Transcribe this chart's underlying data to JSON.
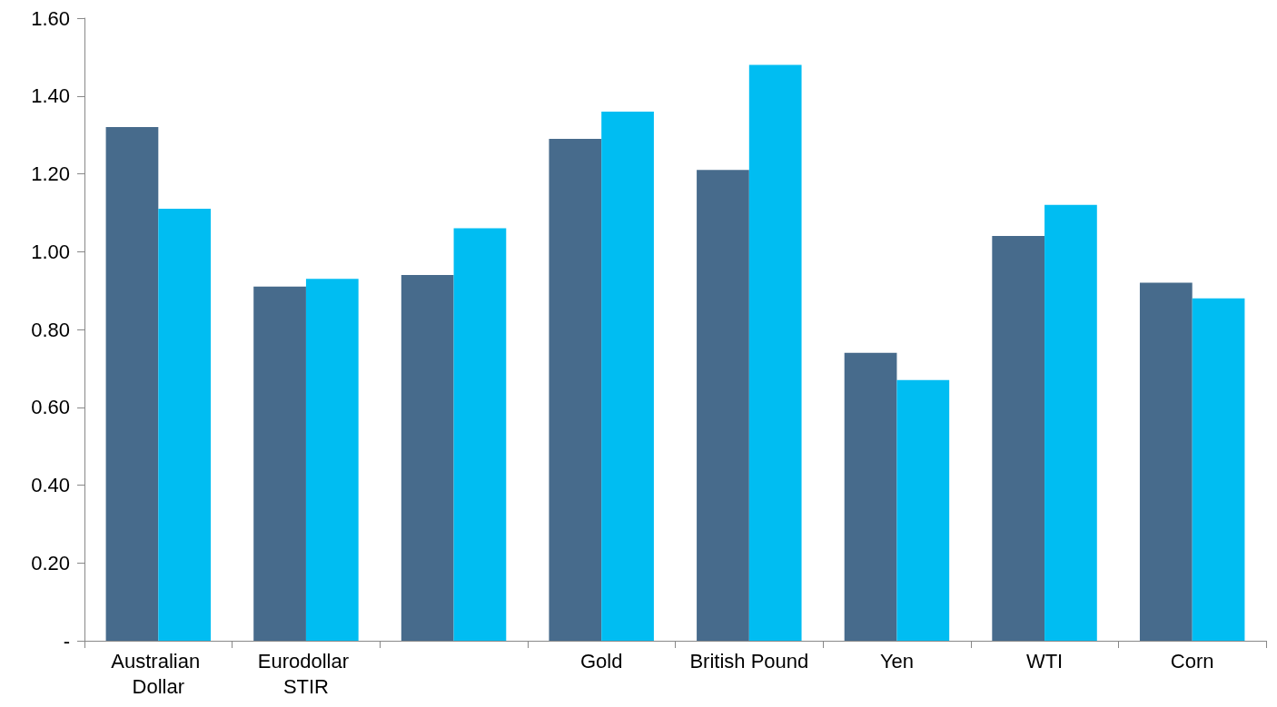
{
  "chart_data": {
    "type": "bar",
    "categories": [
      "Australian Dollar",
      "Eurodollar STIR",
      null,
      "Gold",
      "British Pound",
      "Yen",
      "WTI",
      "Corn"
    ],
    "series": [
      {
        "color": "#476b8c",
        "values": [
          1.32,
          0.91,
          0.94,
          1.29,
          1.21,
          0.74,
          1.04,
          0.92
        ]
      },
      {
        "color": "#00bdf2",
        "values": [
          1.11,
          0.93,
          1.06,
          1.36,
          1.48,
          0.67,
          1.12,
          0.88
        ]
      }
    ],
    "ylim": [
      0,
      1.6
    ],
    "yticks": [
      {
        "value": 0,
        "label": "-"
      },
      {
        "value": 0.2,
        "label": "0.20"
      },
      {
        "value": 0.4,
        "label": "0.40"
      },
      {
        "value": 0.6,
        "label": "0.60"
      },
      {
        "value": 0.8,
        "label": "0.80"
      },
      {
        "value": 1.0,
        "label": "1.00"
      },
      {
        "value": 1.2,
        "label": "1.20"
      },
      {
        "value": 1.4,
        "label": "1.40"
      },
      {
        "value": 1.6,
        "label": "1.60"
      }
    ],
    "grid": false
  }
}
